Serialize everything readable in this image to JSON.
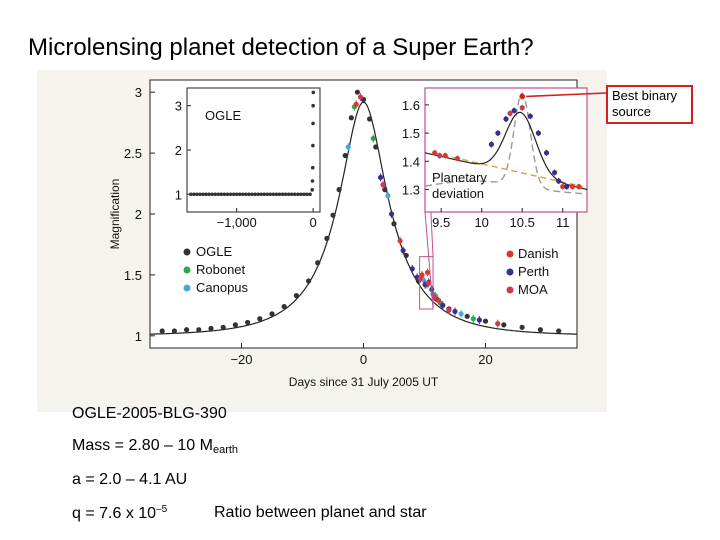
{
  "slide": {
    "title": "Microlensing planet detection of a Super Earth?",
    "callout": "Best binary source"
  },
  "info": {
    "event": "OGLE-2005-BLG-390",
    "mass_prefix": "Mass = 2.80 – 10 M",
    "mass_sub": "earth",
    "a": "a = 2.0 – 4.1 AU",
    "q_prefix": "q = 7.6 x 10",
    "q_exp": "–5",
    "ratio": "Ratio between planet and star"
  },
  "colors": {
    "ogle": "#333333",
    "robonet": "#2ea84a",
    "canopus": "#47a9d8",
    "danish": "#d63a2f",
    "perth": "#3c2c8c",
    "moa": "#c63a52",
    "curve": "#222222",
    "planet_box": "#c0508c",
    "callout": "#d4201f"
  },
  "chart_data": [
    {
      "id": "main",
      "type": "line",
      "title": "",
      "xlabel": "Days since 31 July 2005 UT",
      "ylabel": "Magnification",
      "xlim": [
        -35,
        35
      ],
      "ylim": [
        0.9,
        3.1
      ],
      "xticks": [
        {
          "v": -20,
          "label": "−20"
        },
        {
          "v": 0,
          "label": "0"
        },
        {
          "v": 20,
          "label": "20"
        }
      ],
      "yticks": [
        {
          "v": 1,
          "label": "1"
        },
        {
          "v": 1.5,
          "label": "1.5"
        },
        {
          "v": 2,
          "label": "2"
        },
        {
          "v": 2.5,
          "label": "2.5"
        },
        {
          "v": 3,
          "label": "3"
        }
      ],
      "model": {
        "t0": 0,
        "u0": 0.359,
        "tE": 11.0
      },
      "legend_left": [
        {
          "name": "OGLE",
          "color_key": "ogle"
        },
        {
          "name": "Robonet",
          "color_key": "robonet"
        },
        {
          "name": "Canopus",
          "color_key": "canopus"
        }
      ],
      "legend_right": [
        {
          "name": "Danish",
          "color_key": "danish"
        },
        {
          "name": "Perth",
          "color_key": "perth"
        },
        {
          "name": "MOA",
          "color_key": "moa"
        }
      ],
      "series": [
        {
          "name": "OGLE",
          "color_key": "ogle",
          "points": [
            [
              -33,
              1.04
            ],
            [
              -31,
              1.04
            ],
            [
              -29,
              1.05
            ],
            [
              -27,
              1.05
            ],
            [
              -25,
              1.06
            ],
            [
              -23,
              1.07
            ],
            [
              -21,
              1.09
            ],
            [
              -19,
              1.11
            ],
            [
              -17,
              1.14
            ],
            [
              -15,
              1.18
            ],
            [
              -13,
              1.24
            ],
            [
              -11,
              1.33
            ],
            [
              -9,
              1.45
            ],
            [
              -7.5,
              1.6
            ],
            [
              -6,
              1.8
            ],
            [
              -5,
              1.99
            ],
            [
              -4,
              2.2
            ],
            [
              -3,
              2.48
            ],
            [
              -2,
              2.79
            ],
            [
              -1,
              3.0
            ],
            [
              0,
              2.94
            ],
            [
              1,
              2.78
            ],
            [
              2,
              2.55
            ],
            [
              3.5,
              2.2
            ],
            [
              5,
              1.92
            ],
            [
              7,
              1.66
            ],
            [
              9,
              1.45
            ],
            [
              12,
              1.3
            ],
            [
              14,
              1.22
            ],
            [
              17,
              1.16
            ],
            [
              20,
              1.12
            ],
            [
              23,
              1.09
            ],
            [
              26,
              1.07
            ],
            [
              29,
              1.05
            ],
            [
              32,
              1.04
            ]
          ]
        },
        {
          "name": "Robonet",
          "color_key": "robonet",
          "points": [
            [
              -1.5,
              2.88
            ],
            [
              1.6,
              2.62
            ],
            [
              10.4,
              1.42
            ],
            [
              11.4,
              1.34
            ],
            [
              12.6,
              1.27
            ],
            [
              18,
              1.14
            ]
          ]
        },
        {
          "name": "Canopus",
          "color_key": "canopus",
          "points": [
            [
              -2.5,
              2.55
            ],
            [
              4,
              2.15
            ],
            [
              9.8,
              1.46
            ],
            [
              11.8,
              1.33
            ],
            [
              16,
              1.18
            ]
          ]
        },
        {
          "name": "Danish",
          "color_key": "danish",
          "points": [
            [
              -1.2,
              2.9
            ],
            [
              6,
              1.78
            ],
            [
              9.6,
              1.5
            ],
            [
              10.5,
              1.52
            ],
            [
              12.3,
              1.29
            ],
            [
              22,
              1.1
            ]
          ]
        },
        {
          "name": "Perth",
          "color_key": "perth",
          "points": [
            [
              2.8,
              2.3
            ],
            [
              4.6,
              2.0
            ],
            [
              6.5,
              1.7
            ],
            [
              8,
              1.55
            ],
            [
              8.8,
              1.48
            ],
            [
              10.1,
              1.42
            ],
            [
              10.7,
              1.44
            ],
            [
              11.2,
              1.38
            ],
            [
              13,
              1.25
            ],
            [
              15,
              1.2
            ],
            [
              19,
              1.13
            ]
          ]
        },
        {
          "name": "MOA",
          "color_key": "moa",
          "points": [
            [
              -0.5,
              2.96
            ],
            [
              3.2,
              2.24
            ],
            [
              9.3,
              1.47
            ],
            [
              10.6,
              1.43
            ],
            [
              11.6,
              1.32
            ],
            [
              14,
              1.21
            ]
          ]
        }
      ]
    },
    {
      "id": "inset-ogle",
      "type": "scatter",
      "title": "OGLE",
      "xlim": [
        -1650,
        90
      ],
      "ylim": [
        0.6,
        3.4
      ],
      "xticks": [
        {
          "v": -1000,
          "label": "−1,000"
        },
        {
          "v": 0,
          "label": "0"
        }
      ],
      "yticks": [
        {
          "v": 1,
          "label": "1"
        },
        {
          "v": 2,
          "label": "2"
        },
        {
          "v": 3,
          "label": "3"
        }
      ],
      "baseline": 1.0,
      "rise": [
        [
          -12,
          1.1
        ],
        [
          -8,
          1.3
        ],
        [
          -5,
          1.6
        ],
        [
          -3,
          2.1
        ],
        [
          -1,
          2.6
        ],
        [
          0,
          3.0
        ],
        [
          2,
          3.3
        ]
      ]
    },
    {
      "id": "inset-planet",
      "type": "line",
      "title": "Planetary deviation",
      "xlim": [
        9.3,
        11.3
      ],
      "ylim": [
        1.22,
        1.66
      ],
      "xticks": [
        {
          "v": 9.5,
          "label": "9.5"
        },
        {
          "v": 10,
          "label": "10"
        },
        {
          "v": 10.5,
          "label": "10.5"
        },
        {
          "v": 11,
          "label": "11"
        }
      ],
      "yticks": [
        {
          "v": 1.3,
          "label": "1.3"
        },
        {
          "v": 1.4,
          "label": "1.4"
        },
        {
          "v": 1.5,
          "label": "1.5"
        },
        {
          "v": 1.6,
          "label": "1.6"
        }
      ],
      "series": [
        {
          "name": "Danish",
          "color_key": "danish",
          "points": [
            [
              9.42,
              1.43
            ],
            [
              9.55,
              1.42
            ],
            [
              9.7,
              1.41
            ],
            [
              10.5,
              1.63
            ],
            [
              11.0,
              1.31
            ],
            [
              11.12,
              1.31
            ],
            [
              11.2,
              1.31
            ]
          ]
        },
        {
          "name": "Perth",
          "color_key": "perth",
          "points": [
            [
              10.12,
              1.46
            ],
            [
              10.2,
              1.5
            ],
            [
              10.3,
              1.55
            ],
            [
              10.4,
              1.58
            ],
            [
              10.6,
              1.56
            ],
            [
              10.7,
              1.5
            ],
            [
              10.8,
              1.43
            ],
            [
              10.9,
              1.36
            ],
            [
              10.95,
              1.33
            ],
            [
              11.05,
              1.31
            ]
          ]
        },
        {
          "name": "MOA",
          "color_key": "moa",
          "points": [
            [
              9.48,
              1.42
            ],
            [
              10.35,
              1.57
            ],
            [
              10.5,
              1.59
            ]
          ]
        }
      ]
    }
  ]
}
